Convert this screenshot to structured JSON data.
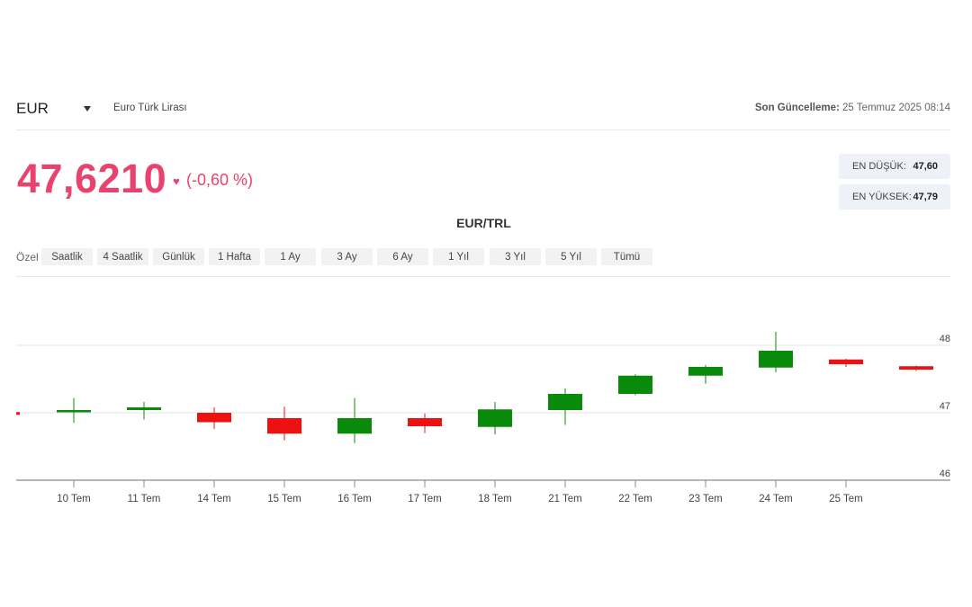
{
  "header": {
    "currency_code": "EUR",
    "currency_name": "Euro Türk Lirası",
    "last_update_label": "Son Güncelleme:",
    "last_update_value": "25 Temmuz 2025 08:14"
  },
  "price": {
    "value": "47,6210",
    "change": "(-0,60 %)",
    "direction_icon": "heart-icon"
  },
  "stats": {
    "low_label": "EN DÜŞÜK:",
    "low_value": "47,60",
    "high_label": "EN YÜKSEK:",
    "high_value": "47,79"
  },
  "chart_title": "EUR/TRL",
  "range_bar": {
    "custom_label": "Özel",
    "buttons": [
      "Saatlik",
      "4 Saatlik",
      "Günlük",
      "1 Hafta",
      "1 Ay",
      "3 Ay",
      "6 Ay",
      "1 Yıl",
      "3 Yıl",
      "5 Yıl",
      "Tümü"
    ]
  },
  "colors": {
    "accent": "#e8436e",
    "up": "#0a8a0a",
    "down": "#ee1111"
  },
  "chart_data": {
    "type": "candlestick",
    "title": "EUR/TRL",
    "ylim": [
      46,
      48.2
    ],
    "y_ticks": [
      "46",
      "47",
      "48"
    ],
    "grid": true,
    "candles": [
      {
        "label": "10 Tem",
        "open": 47.02,
        "close": 47.04,
        "high": 47.22,
        "low": 46.85
      },
      {
        "label": "11 Tem",
        "open": 47.04,
        "close": 47.08,
        "high": 47.16,
        "low": 46.9
      },
      {
        "label": "14 Tem",
        "open": 47.0,
        "close": 46.86,
        "high": 47.08,
        "low": 46.76
      },
      {
        "label": "15 Tem",
        "open": 46.92,
        "close": 46.69,
        "high": 47.09,
        "low": 46.59
      },
      {
        "label": "16 Tem",
        "open": 46.69,
        "close": 46.92,
        "high": 47.22,
        "low": 46.55
      },
      {
        "label": "17 Tem",
        "open": 46.92,
        "close": 46.8,
        "high": 46.99,
        "low": 46.7
      },
      {
        "label": "18 Tem",
        "open": 46.79,
        "close": 47.05,
        "high": 47.16,
        "low": 46.68
      },
      {
        "label": "21 Tem",
        "open": 47.04,
        "close": 47.28,
        "high": 47.36,
        "low": 46.82
      },
      {
        "label": "22 Tem",
        "open": 47.28,
        "close": 47.55,
        "high": 47.57,
        "low": 47.26
      },
      {
        "label": "23 Tem",
        "open": 47.55,
        "close": 47.68,
        "high": 47.71,
        "low": 47.43
      },
      {
        "label": "24 Tem",
        "open": 47.67,
        "close": 47.92,
        "high": 48.2,
        "low": 47.6
      },
      {
        "label": "25 Tem",
        "open": 47.79,
        "close": 47.72,
        "high": 47.8,
        "low": 47.68
      },
      {
        "label": "",
        "open": 47.69,
        "close": 47.64,
        "high": 47.7,
        "low": 47.62
      }
    ]
  }
}
